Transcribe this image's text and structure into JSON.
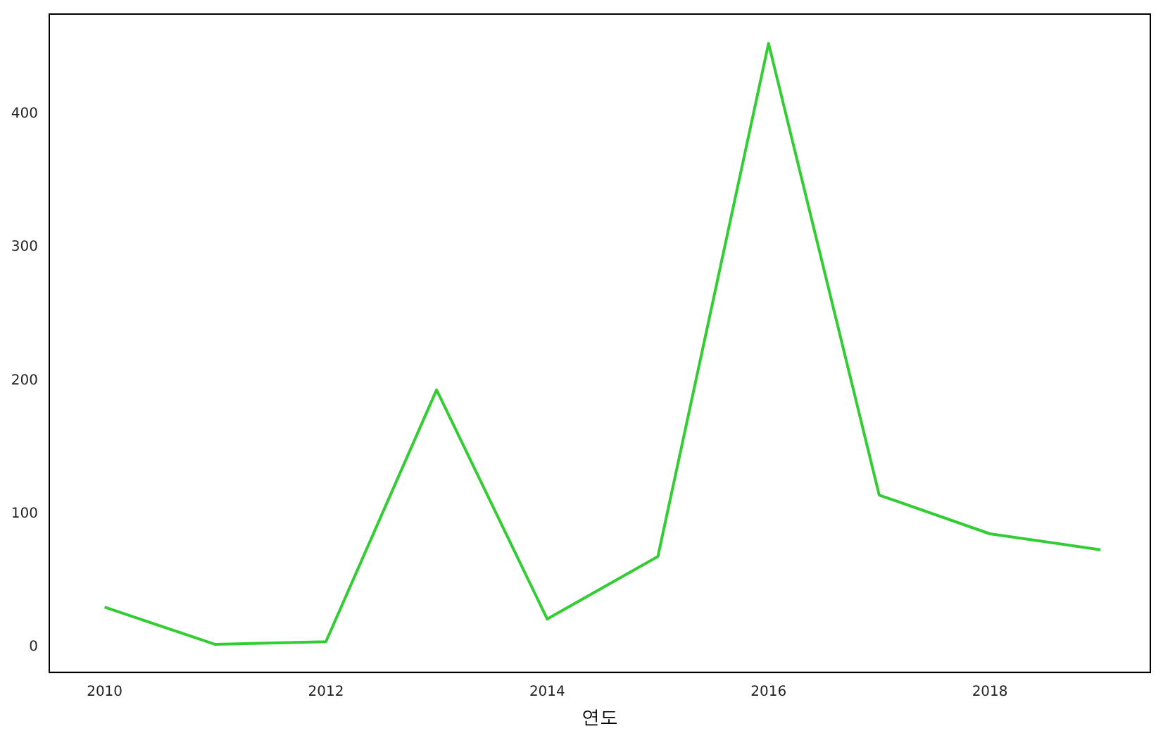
{
  "chart_data": {
    "type": "line",
    "xlabel": "연도",
    "x": [
      2010,
      2011,
      2012,
      2013,
      2014,
      2015,
      2016,
      2017,
      2018,
      2019
    ],
    "series": [
      {
        "color": "#32cd32",
        "values": [
          30,
          2,
          4,
          193,
          21,
          68,
          453,
          114,
          85,
          73
        ]
      }
    ],
    "xlim": [
      2009.5,
      2019.45
    ],
    "xticks": [
      2010,
      2012,
      2014,
      2016,
      2018
    ],
    "ylim": [
      -19,
      475
    ],
    "yticks": [
      0,
      100,
      200,
      300,
      400
    ],
    "grid": false,
    "legend": false,
    "marker": "none",
    "line_style": "solid"
  }
}
